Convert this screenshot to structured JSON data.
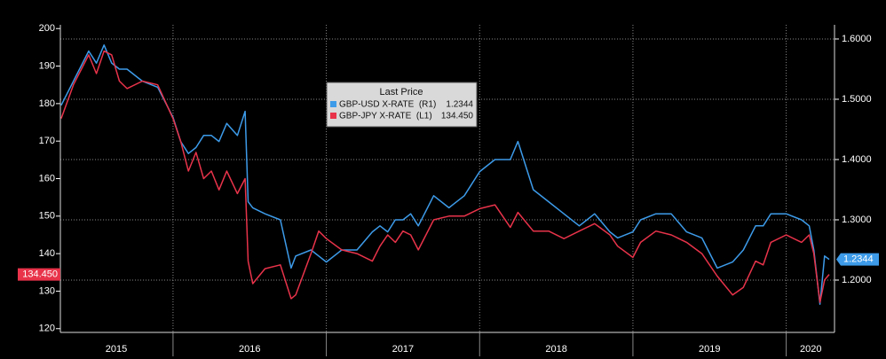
{
  "chart_data": {
    "type": "line",
    "legend_title": "Last Price",
    "x": [
      2015.27,
      2015.35,
      2015.45,
      2015.5,
      2015.55,
      2015.6,
      2015.65,
      2015.7,
      2015.8,
      2015.9,
      2016.0,
      2016.05,
      2016.1,
      2016.15,
      2016.2,
      2016.25,
      2016.3,
      2016.35,
      2016.42,
      2016.47,
      2016.49,
      2016.52,
      2016.6,
      2016.7,
      2016.77,
      2016.8,
      2016.9,
      2016.95,
      2017.0,
      2017.1,
      2017.2,
      2017.3,
      2017.35,
      2017.4,
      2017.45,
      2017.5,
      2017.55,
      2017.6,
      2017.7,
      2017.8,
      2017.9,
      2018.0,
      2018.1,
      2018.2,
      2018.25,
      2018.35,
      2018.45,
      2018.55,
      2018.65,
      2018.75,
      2018.85,
      2018.9,
      2019.0,
      2019.05,
      2019.15,
      2019.25,
      2019.35,
      2019.45,
      2019.55,
      2019.65,
      2019.72,
      2019.8,
      2019.85,
      2019.9,
      2020.0,
      2020.1,
      2020.15,
      2020.18,
      2020.22,
      2020.25,
      2020.28
    ],
    "series": [
      {
        "name": "GBP-USD X-RATE  (R1)",
        "last_price": "1.2344",
        "color": "#3d9be9",
        "axis": "y2",
        "values": [
          1.49,
          1.53,
          1.58,
          1.56,
          1.59,
          1.56,
          1.55,
          1.55,
          1.53,
          1.52,
          1.47,
          1.43,
          1.41,
          1.42,
          1.44,
          1.44,
          1.43,
          1.46,
          1.44,
          1.48,
          1.33,
          1.32,
          1.31,
          1.3,
          1.22,
          1.24,
          1.25,
          1.24,
          1.23,
          1.25,
          1.25,
          1.28,
          1.29,
          1.28,
          1.3,
          1.3,
          1.31,
          1.29,
          1.34,
          1.32,
          1.34,
          1.38,
          1.4,
          1.4,
          1.43,
          1.35,
          1.33,
          1.31,
          1.29,
          1.31,
          1.28,
          1.27,
          1.28,
          1.3,
          1.31,
          1.31,
          1.28,
          1.27,
          1.22,
          1.23,
          1.25,
          1.29,
          1.29,
          1.31,
          1.31,
          1.3,
          1.29,
          1.25,
          1.16,
          1.24,
          1.2344
        ]
      },
      {
        "name": "GBP-JPY X-RATE  (L1)",
        "last_price": "134.450",
        "color": "#e8334a",
        "axis": "y",
        "values": [
          176,
          185,
          193,
          188,
          194,
          193,
          186,
          184,
          186,
          185,
          176,
          170,
          162,
          167,
          160,
          162,
          157,
          162,
          156,
          160,
          138,
          132,
          136,
          137,
          128,
          129,
          140,
          146,
          144,
          141,
          140,
          138,
          142,
          145,
          143,
          146,
          145,
          141,
          149,
          150,
          150,
          152,
          153,
          147,
          151,
          146,
          146,
          144,
          146,
          148,
          145,
          142,
          139,
          143,
          146,
          145,
          143,
          140,
          134,
          129,
          131,
          138,
          137,
          143,
          145,
          143,
          145,
          140,
          127,
          133,
          134.45
        ]
      }
    ],
    "xlim": [
      2015.265,
      2020.315
    ],
    "xticks": [
      {
        "value": 2015.63,
        "label": "2015"
      },
      {
        "value": 2016.5,
        "label": "2016"
      },
      {
        "value": 2017.5,
        "label": "2017"
      },
      {
        "value": 2018.5,
        "label": "2018"
      },
      {
        "value": 2019.5,
        "label": "2019"
      },
      {
        "value": 2020.16,
        "label": "2020"
      }
    ],
    "ylim": [
      119,
      201
    ],
    "yticks": [
      120,
      130,
      140,
      150,
      160,
      170,
      180,
      190,
      200
    ],
    "y2lim": [
      1.1132,
      1.6235
    ],
    "y2ticks": [
      {
        "value": 1.2,
        "label": "1.2000"
      },
      {
        "value": 1.3,
        "label": "1.3000"
      },
      {
        "value": 1.4,
        "label": "1.4000"
      },
      {
        "value": 1.5,
        "label": "1.5000"
      },
      {
        "value": 1.6,
        "label": "1.6000"
      }
    ],
    "grid": true
  }
}
